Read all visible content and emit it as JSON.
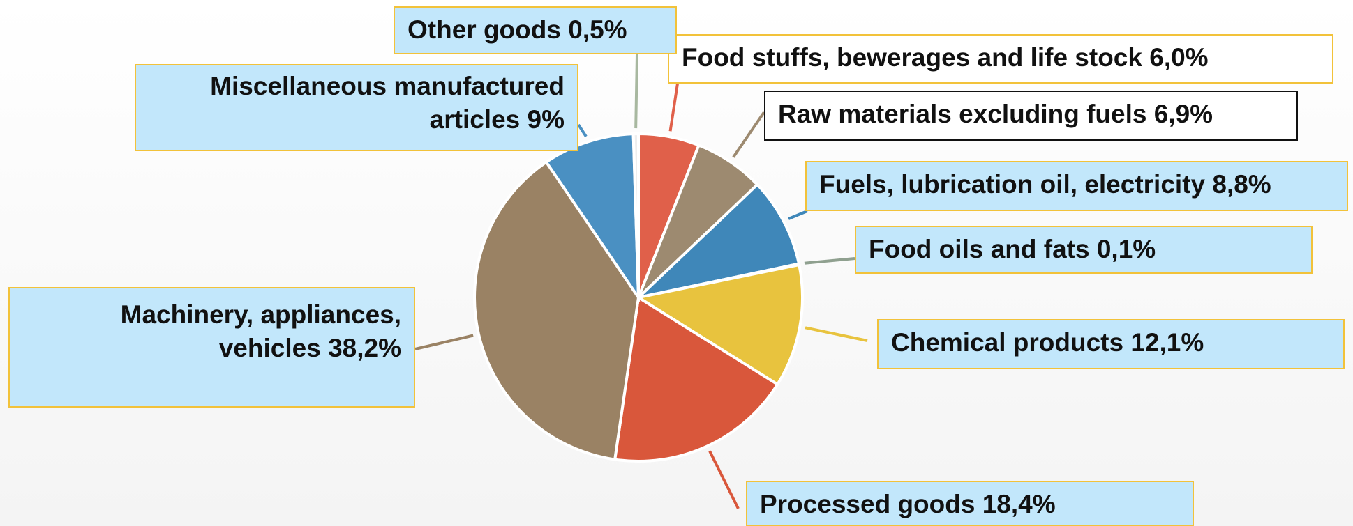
{
  "chart_data": {
    "type": "pie",
    "categories": [
      "Food stuffs, bewerages and life stock",
      "Raw materials excluding fuels",
      "Fuels, lubrication oil, electricity",
      "Food oils and fats",
      "Chemical products",
      "Processed goods",
      "Machinery, appliances, vehicles",
      "Miscellaneous manufactured articles",
      "Other goods"
    ],
    "values": [
      6.0,
      6.9,
      8.8,
      0.1,
      12.1,
      18.4,
      38.2,
      9,
      0.5
    ],
    "value_labels": [
      "6,0%",
      "6,9%",
      "8,8%",
      "0,1%",
      "12,1%",
      "18,4%",
      "38,2%",
      "9%",
      "0,5%"
    ],
    "colors": [
      "#e0604a",
      "#9d8a70",
      "#3f87b9",
      "#8fa08f",
      "#e8c33e",
      "#d9573b",
      "#9a8264",
      "#4a90c2",
      "#eeeeee"
    ]
  }
}
